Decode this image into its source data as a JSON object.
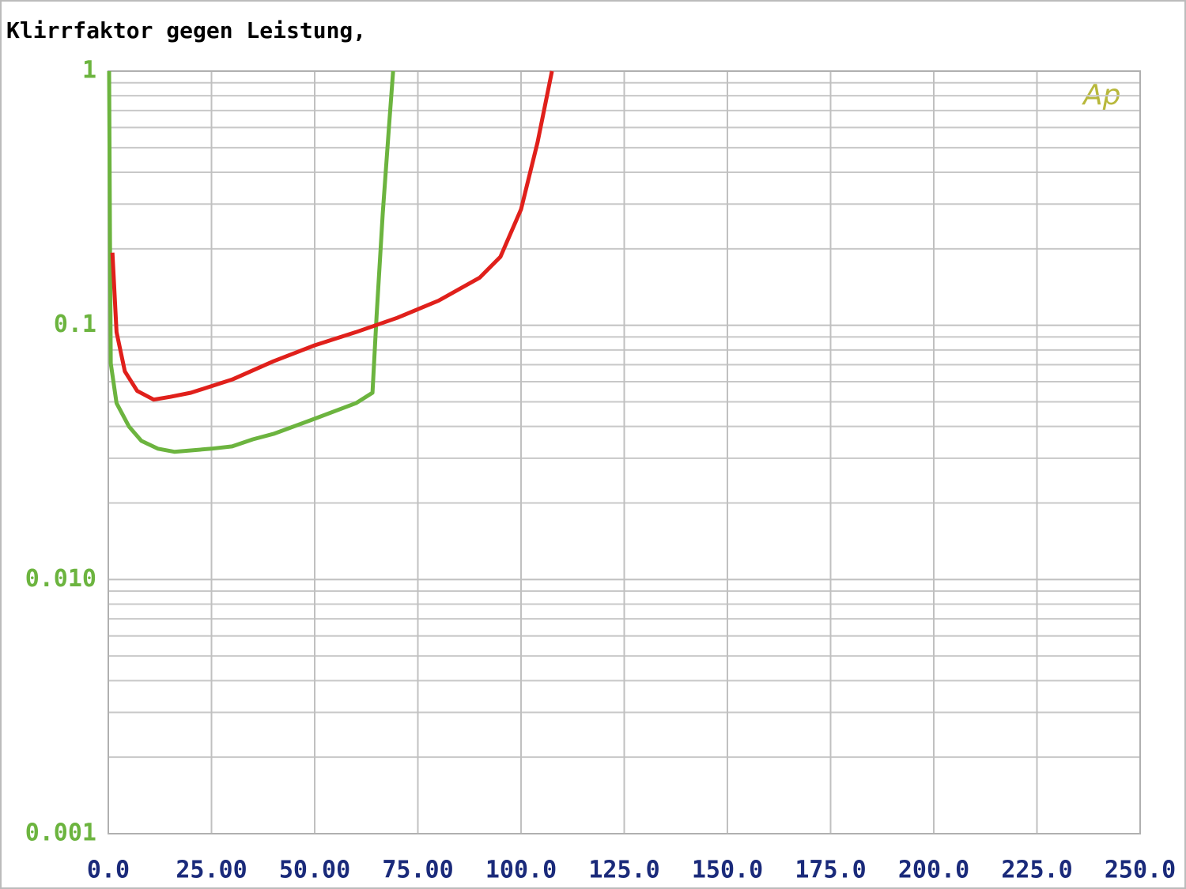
{
  "chart_data": {
    "type": "line",
    "title": "Klirrfaktor gegen Leistung,",
    "annotation": "Ap",
    "log_y": true,
    "grid": true,
    "xlim": [
      0,
      250
    ],
    "xticks": [
      {
        "value": 0,
        "label": "0.0"
      },
      {
        "value": 25,
        "label": "25.00"
      },
      {
        "value": 50,
        "label": "50.00"
      },
      {
        "value": 75,
        "label": "75.00"
      },
      {
        "value": 100,
        "label": "100.0"
      },
      {
        "value": 125,
        "label": "125.0"
      },
      {
        "value": 150,
        "label": "150.0"
      },
      {
        "value": 175,
        "label": "175.0"
      },
      {
        "value": 200,
        "label": "200.0"
      },
      {
        "value": 225,
        "label": "225.0"
      },
      {
        "value": 250,
        "label": "250.0"
      }
    ],
    "ylim": [
      0.001,
      1
    ],
    "yticks": [
      0.001,
      {
        "value": 0.01,
        "label": "0.010"
      },
      0.1,
      1
    ],
    "series": [
      {
        "color": "#6cb43f",
        "x": [
          0.2,
          0.4,
          0.6,
          2,
          5,
          8,
          12,
          16,
          25,
          30,
          35,
          40,
          50,
          60,
          64,
          65,
          66.5,
          68,
          69
        ],
        "values": [
          1,
          0.222,
          0.0708,
          0.0494,
          0.04,
          0.0351,
          0.0327,
          0.0318,
          0.0327,
          0.0334,
          0.0356,
          0.0374,
          0.0429,
          0.0494,
          0.0543,
          0.109,
          0.276,
          0.606,
          1
        ]
      },
      {
        "color": "#e0201b",
        "x": [
          1,
          2,
          4,
          7,
          11,
          15,
          20,
          30,
          40,
          50,
          60,
          70,
          80,
          90,
          95,
          100,
          104,
          107.5
        ],
        "values": [
          0.193,
          0.094,
          0.0659,
          0.0552,
          0.051,
          0.0523,
          0.0543,
          0.0612,
          0.0722,
          0.0834,
          0.094,
          0.107,
          0.125,
          0.154,
          0.186,
          0.286,
          0.525,
          1
        ]
      }
    ]
  }
}
